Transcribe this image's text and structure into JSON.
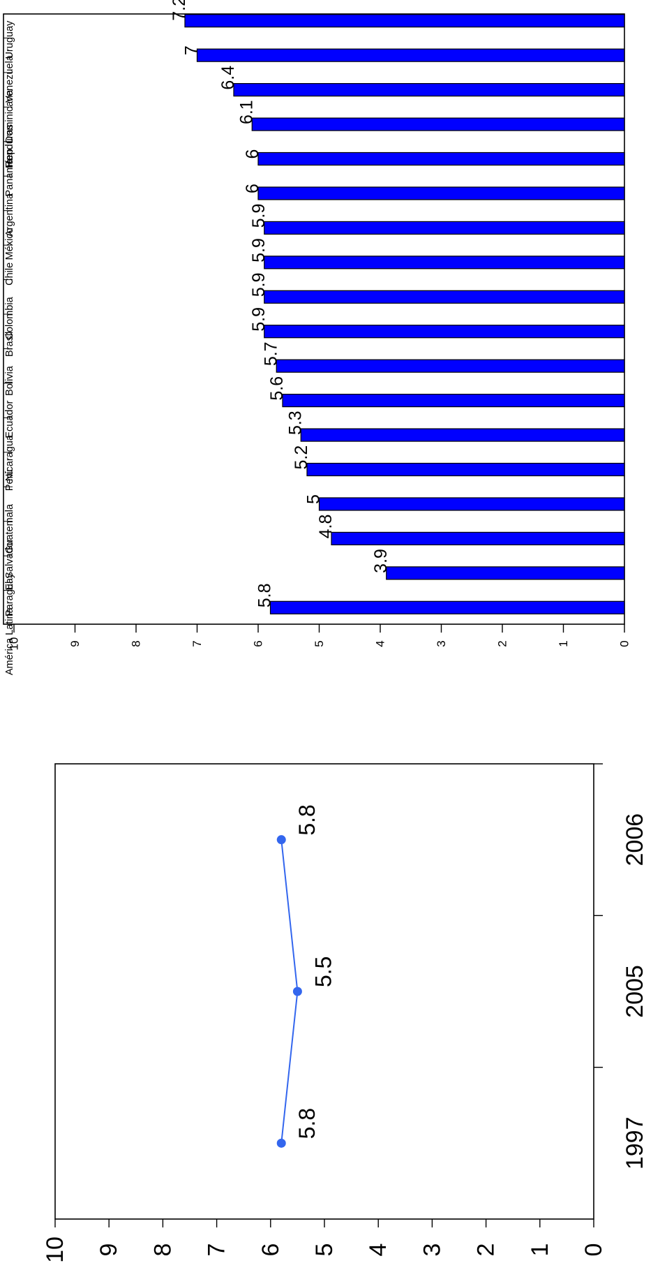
{
  "chart_data": [
    {
      "type": "bar",
      "categories": [
        "Uruguay",
        "Venezuela",
        "Rep. Dominicana",
        "Honduras",
        "Panamá",
        "Argentina",
        "México",
        "Chile",
        "Colombia",
        "Brasil",
        "Bolivia",
        "Ecuador",
        "Nicaragua",
        "Perú",
        "Guatemala",
        "El Salvador",
        "Paraguay",
        "América Latina"
      ],
      "values": [
        7.2,
        7,
        6.4,
        6.1,
        6,
        6,
        5.9,
        5.9,
        5.9,
        5.9,
        5.7,
        5.6,
        5.3,
        5.2,
        5,
        4.8,
        3.9,
        5.8
      ],
      "value_labels": [
        "7.2",
        "7",
        "6.4",
        "6.1",
        "6",
        "6",
        "5.9",
        "5.9",
        "5.9",
        "5.9",
        "5.7",
        "5.6",
        "5.3",
        "5.2",
        "5",
        "4.8",
        "3.9",
        "5.8"
      ],
      "ylim": [
        0,
        10
      ],
      "yticks": [
        "0",
        "1",
        "2",
        "3",
        "4",
        "5",
        "6",
        "7",
        "8",
        "9",
        "10"
      ],
      "bar_color": "#0000ff",
      "grid": false
    },
    {
      "type": "line",
      "categories": [
        "1997",
        "2005",
        "2006"
      ],
      "values": [
        5.8,
        5.5,
        5.8
      ],
      "value_labels": [
        "5.8",
        "5.5",
        "5.8"
      ],
      "ylim": [
        0,
        10
      ],
      "yticks": [
        "0",
        "1",
        "2",
        "3",
        "4",
        "5",
        "6",
        "7",
        "8",
        "9",
        "10"
      ],
      "line_color": "#3366ee",
      "grid": false
    }
  ]
}
